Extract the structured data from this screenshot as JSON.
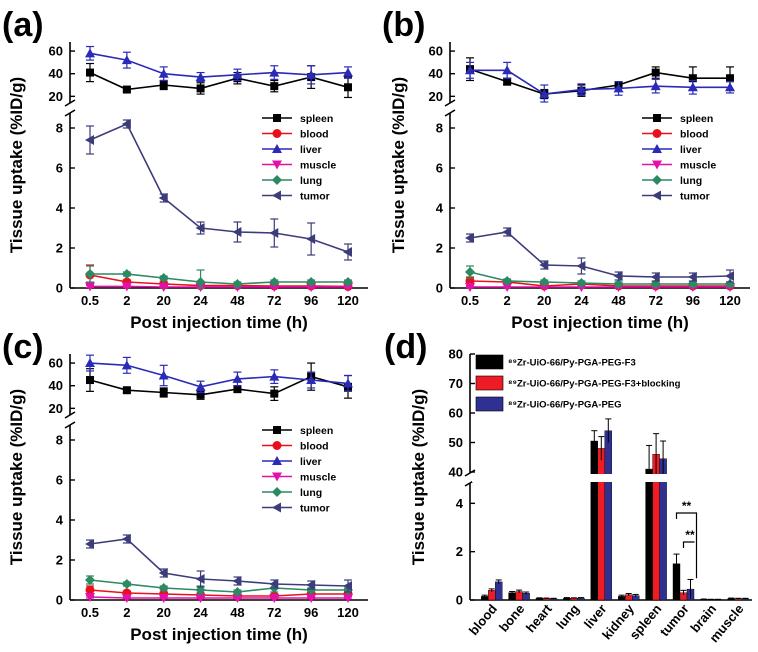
{
  "chart_data": [
    {
      "type": "line",
      "panel": "(a)",
      "xlabel": "Post injection time (h)",
      "ylabel": "Tissue uptake (%ID/g)",
      "categories": [
        "0.5",
        "2",
        "20",
        "24",
        "48",
        "72",
        "96",
        "120"
      ],
      "y_lower_ticks": [
        "0",
        "2",
        "4",
        "6",
        "8"
      ],
      "y_upper_ticks": [
        "20",
        "40",
        "60"
      ],
      "y_lower_range": [
        0,
        8.8
      ],
      "y_upper_range": [
        15,
        68
      ],
      "legend_position": "right",
      "series": [
        {
          "name": "spleen",
          "color": "#000000",
          "marker": "square",
          "values": [
            41,
            26,
            30,
            27,
            36,
            29,
            37,
            28
          ],
          "errors": [
            8,
            2,
            4,
            5,
            5,
            5,
            10,
            9
          ]
        },
        {
          "name": "blood",
          "color": "#e8101c",
          "marker": "circle",
          "values": [
            0.65,
            0.3,
            0.2,
            0.12,
            0.12,
            0.1,
            0.1,
            0.08
          ],
          "errors": [
            0.5,
            0.1,
            0.1,
            0.1,
            0.05,
            0.05,
            0.05,
            0.05
          ]
        },
        {
          "name": "liver",
          "color": "#2a2ab8",
          "marker": "triangle-up",
          "values": [
            58,
            52,
            40,
            37,
            39,
            41,
            39,
            41
          ],
          "errors": [
            6,
            7,
            6,
            4,
            5,
            6,
            8,
            5
          ]
        },
        {
          "name": "muscle",
          "color": "#e410a8",
          "marker": "triangle-down",
          "values": [
            0.08,
            0.08,
            0.05,
            0.05,
            0.05,
            0.05,
            0.05,
            0.05
          ],
          "errors": [
            0.05,
            0.05,
            0.03,
            0.03,
            0.03,
            0.03,
            0.03,
            0.03
          ]
        },
        {
          "name": "lung",
          "color": "#2b8a62",
          "marker": "diamond",
          "values": [
            0.7,
            0.7,
            0.5,
            0.3,
            0.2,
            0.3,
            0.3,
            0.3
          ],
          "errors": [
            0.4,
            0.1,
            0.1,
            0.6,
            0.1,
            0.1,
            0.1,
            0.1
          ]
        },
        {
          "name": "tumor",
          "color": "#3c3c7a",
          "marker": "triangle-left",
          "values": [
            7.4,
            8.2,
            4.5,
            3.0,
            2.8,
            2.75,
            2.45,
            1.8
          ],
          "errors": [
            0.7,
            0.2,
            0.2,
            0.3,
            0.5,
            0.7,
            0.8,
            0.4
          ]
        }
      ]
    },
    {
      "type": "line",
      "panel": "(b)",
      "xlabel": "Post injection time (h)",
      "ylabel": "Tissue uptake (%ID/g)",
      "categories": [
        "0.5",
        "2",
        "20",
        "24",
        "48",
        "72",
        "96",
        "120"
      ],
      "y_lower_ticks": [
        "0",
        "2",
        "4",
        "6",
        "8"
      ],
      "y_upper_ticks": [
        "20",
        "40",
        "60"
      ],
      "y_lower_range": [
        0,
        8.8
      ],
      "y_upper_range": [
        15,
        68
      ],
      "legend_position": "right",
      "series": [
        {
          "name": "spleen",
          "color": "#000000",
          "marker": "square",
          "values": [
            44,
            33,
            22,
            25,
            30,
            41,
            36,
            36
          ],
          "errors": [
            10,
            3,
            4,
            5,
            3,
            5,
            10,
            10
          ]
        },
        {
          "name": "blood",
          "color": "#e8101c",
          "marker": "circle",
          "values": [
            0.35,
            0.3,
            0.1,
            0.2,
            0.1,
            0.1,
            0.1,
            0.1
          ],
          "errors": [
            0.2,
            0.1,
            0.05,
            0.05,
            0.05,
            0.05,
            0.05,
            0.05
          ]
        },
        {
          "name": "liver",
          "color": "#2a2ab8",
          "marker": "triangle-up",
          "values": [
            43,
            43,
            22,
            26,
            27,
            29,
            28,
            28
          ],
          "errors": [
            7,
            7,
            8,
            5,
            6,
            6,
            6,
            5
          ]
        },
        {
          "name": "muscle",
          "color": "#e410a8",
          "marker": "triangle-down",
          "values": [
            0.05,
            0.05,
            0.05,
            0.05,
            0.05,
            0.05,
            0.05,
            0.05
          ],
          "errors": [
            0.03,
            0.03,
            0.03,
            0.03,
            0.03,
            0.03,
            0.03,
            0.03
          ]
        },
        {
          "name": "lung",
          "color": "#2b8a62",
          "marker": "diamond",
          "values": [
            0.8,
            0.35,
            0.3,
            0.25,
            0.2,
            0.2,
            0.2,
            0.2
          ],
          "errors": [
            0.3,
            0.1,
            0.1,
            0.1,
            0.1,
            0.1,
            0.1,
            0.1
          ]
        },
        {
          "name": "tumor",
          "color": "#3c3c7a",
          "marker": "triangle-left",
          "values": [
            2.5,
            2.8,
            1.15,
            1.1,
            0.6,
            0.55,
            0.55,
            0.6
          ],
          "errors": [
            0.2,
            0.2,
            0.2,
            0.4,
            0.2,
            0.2,
            0.2,
            0.3
          ]
        }
      ]
    },
    {
      "type": "line",
      "panel": "(c)",
      "xlabel": "Post injection time (h)",
      "ylabel": "Tissue uptake (%ID/g)",
      "categories": [
        "0.5",
        "2",
        "20",
        "24",
        "48",
        "72",
        "96",
        "120"
      ],
      "y_lower_ticks": [
        "0",
        "2",
        "4",
        "6",
        "8"
      ],
      "y_upper_ticks": [
        "20",
        "40",
        "60"
      ],
      "y_lower_range": [
        0,
        8.8
      ],
      "y_upper_range": [
        15,
        68
      ],
      "legend_position": "right",
      "series": [
        {
          "name": "spleen",
          "color": "#000000",
          "marker": "square",
          "values": [
            45,
            36,
            34,
            32,
            37,
            33,
            48,
            39
          ],
          "errors": [
            10,
            2,
            4,
            4,
            3,
            6,
            12,
            10
          ]
        },
        {
          "name": "blood",
          "color": "#e8101c",
          "marker": "circle",
          "values": [
            0.5,
            0.35,
            0.3,
            0.25,
            0.2,
            0.2,
            0.3,
            0.3
          ],
          "errors": [
            0.2,
            0.1,
            0.1,
            0.1,
            0.1,
            0.1,
            0.1,
            0.1
          ]
        },
        {
          "name": "liver",
          "color": "#2a2ab8",
          "marker": "triangle-up",
          "values": [
            60,
            58,
            49,
            39,
            46,
            48,
            45,
            42
          ],
          "errors": [
            7,
            7,
            9,
            5,
            6,
            6,
            7,
            7
          ]
        },
        {
          "name": "muscle",
          "color": "#e410a8",
          "marker": "triangle-down",
          "values": [
            0.15,
            0.1,
            0.1,
            0.1,
            0.1,
            0.1,
            0.1,
            0.1
          ],
          "errors": [
            0.05,
            0.05,
            0.05,
            0.05,
            0.05,
            0.05,
            0.05,
            0.05
          ]
        },
        {
          "name": "lung",
          "color": "#2b8a62",
          "marker": "diamond",
          "values": [
            1.0,
            0.8,
            0.6,
            0.5,
            0.4,
            0.6,
            0.5,
            0.5
          ],
          "errors": [
            0.2,
            0.1,
            0.1,
            0.2,
            0.1,
            0.2,
            0.1,
            0.1
          ]
        },
        {
          "name": "tumor",
          "color": "#3c3c7a",
          "marker": "triangle-left",
          "values": [
            2.8,
            3.05,
            1.35,
            1.05,
            0.95,
            0.8,
            0.75,
            0.7
          ],
          "errors": [
            0.2,
            0.2,
            0.2,
            0.4,
            0.2,
            0.2,
            0.2,
            0.3
          ]
        }
      ]
    },
    {
      "type": "bar",
      "panel": "(d)",
      "ylabel": "Tissue uptake (%ID/g)",
      "categories": [
        "blood",
        "bone",
        "heart",
        "lung",
        "liver",
        "kidney",
        "spleen",
        "tumor",
        "brain",
        "muscle"
      ],
      "y_lower_ticks": [
        "0",
        "2",
        "4"
      ],
      "y_upper_ticks": [
        "40",
        "50",
        "60",
        "70",
        "80"
      ],
      "y_lower_range": [
        0,
        4.8
      ],
      "y_upper_range": [
        40,
        80
      ],
      "legend_position": "top-left",
      "significance": [
        "**",
        "**"
      ],
      "series": [
        {
          "name": "⁸⁹Zr-UiO-66/Py-PGA-PEG-F3",
          "color": "#000000",
          "values": [
            0.15,
            0.3,
            0.07,
            0.08,
            50.5,
            0.15,
            41,
            1.5,
            0.03,
            0.06
          ],
          "errors": [
            0.05,
            0.05,
            0.02,
            0.02,
            3.5,
            0.05,
            8,
            0.4,
            0.01,
            0.02
          ]
        },
        {
          "name": "⁸⁹Zr-UiO-66/Py-PGA-PEG-F3+blocking",
          "color": "#ee1c24",
          "values": [
            0.4,
            0.35,
            0.06,
            0.07,
            48,
            0.22,
            46,
            0.3,
            0.02,
            0.05
          ],
          "errors": [
            0.06,
            0.06,
            0.02,
            0.02,
            4,
            0.05,
            7,
            0.1,
            0.01,
            0.02
          ]
        },
        {
          "name": "⁸⁹Zr-UiO-66/Py-PGA-PEG",
          "color": "#2e3192",
          "values": [
            0.75,
            0.28,
            0.05,
            0.08,
            54,
            0.18,
            44.5,
            0.45,
            0.02,
            0.05
          ],
          "errors": [
            0.08,
            0.05,
            0.02,
            0.02,
            4,
            0.05,
            6,
            0.4,
            0.01,
            0.02
          ]
        }
      ]
    }
  ]
}
